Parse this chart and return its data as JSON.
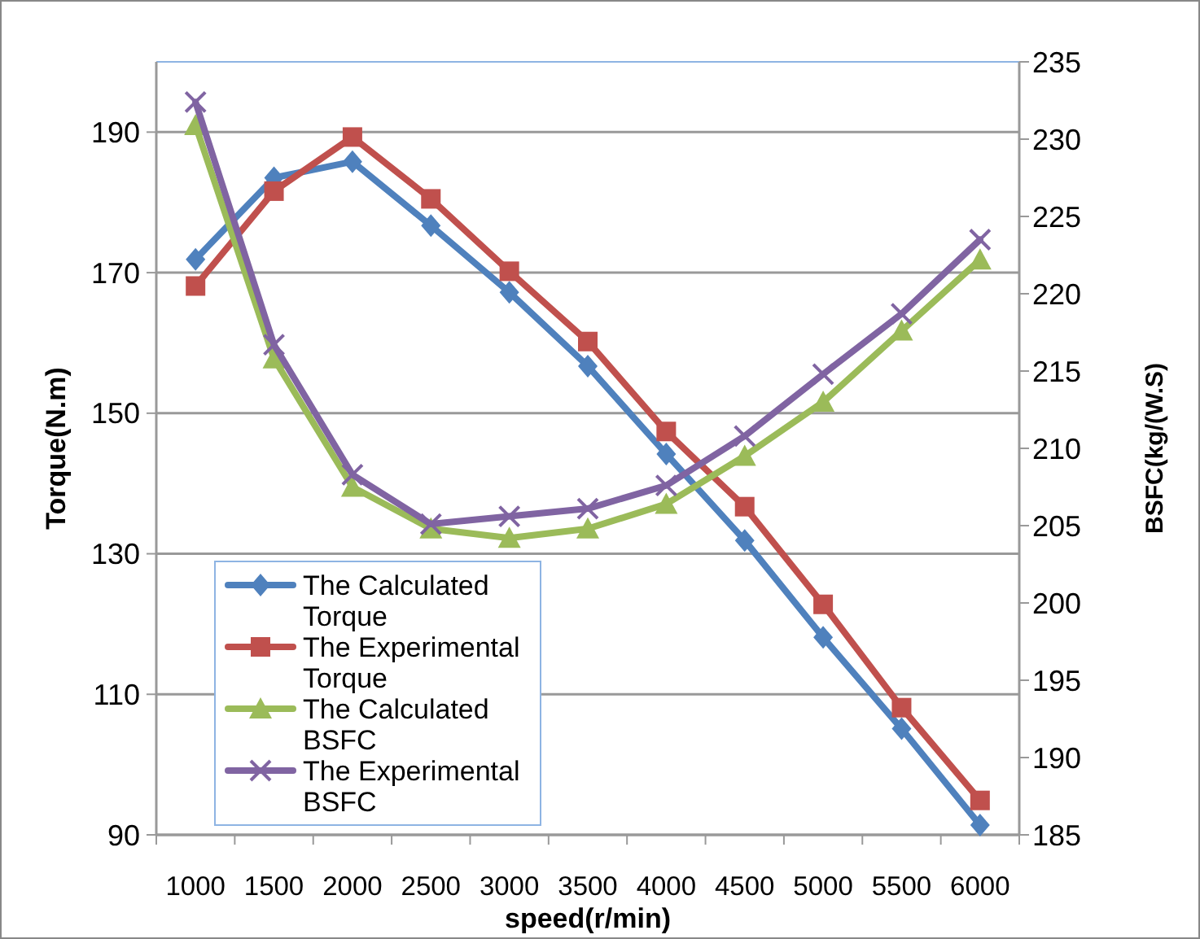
{
  "chart_data": {
    "type": "line",
    "xlabel": "speed(r/min)",
    "ylabel": "Torque(N.m)",
    "y2label": "BSFC(kg/(W.S)",
    "categories": [
      "1000",
      "1500",
      "2000",
      "2500",
      "3000",
      "3500",
      "4000",
      "4500",
      "5000",
      "5500",
      "6000"
    ],
    "series": [
      {
        "name": "The Calculated Torque",
        "color": "#4f81bd",
        "marker": "diamond",
        "values": [
          171.9,
          183.5,
          185.8,
          176.7,
          167.2,
          156.7,
          144.2,
          131.9,
          118.1,
          105.1,
          91.4
        ]
      },
      {
        "name": "The Experimental Torque",
        "color": "#c0504d",
        "marker": "square",
        "values": [
          168.1,
          181.6,
          189.3,
          180.5,
          170.2,
          160.2,
          147.4,
          136.7,
          122.8,
          108.1,
          94.9
        ]
      },
      {
        "name": "The Calculated BSFC",
        "color": "#9bbb59",
        "marker": "triangle",
        "axis": "y2",
        "values": [
          230.9,
          215.8,
          207.5,
          204.8,
          204.2,
          204.8,
          206.4,
          209.5,
          213.0,
          217.6,
          222.2
        ]
      },
      {
        "name": "The Experimental BSFC",
        "color": "#8064a2",
        "marker": "cross",
        "axis": "y2",
        "values": [
          232.4,
          216.7,
          208.3,
          205.1,
          205.6,
          206.1,
          207.6,
          210.8,
          214.8,
          218.7,
          223.5
        ]
      }
    ],
    "ylim": [
      90,
      200
    ],
    "yticks": [
      90,
      110,
      130,
      150,
      170,
      190
    ],
    "y2lim": [
      185,
      235
    ],
    "y2ticks": [
      185,
      190,
      195,
      200,
      205,
      210,
      215,
      220,
      225,
      230,
      235
    ],
    "grid": "y",
    "legend": "bottom left",
    "line_style": "solid"
  }
}
